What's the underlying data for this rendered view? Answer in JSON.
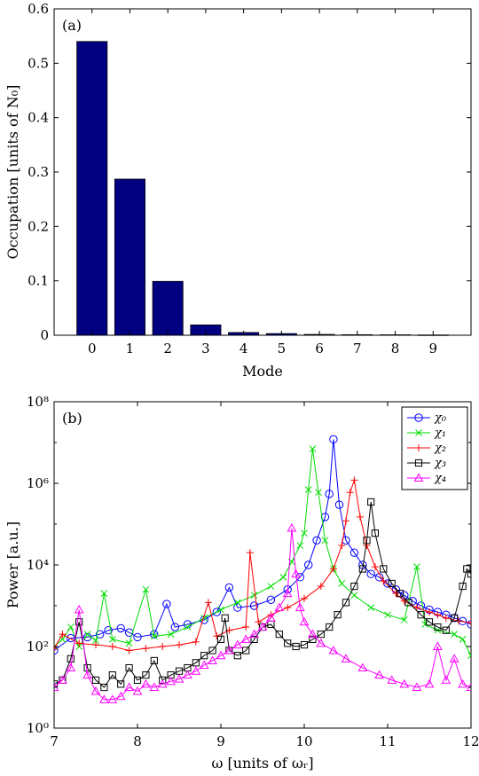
{
  "chart_data": [
    {
      "type": "bar",
      "panel_label": "(a)",
      "title": "",
      "xlabel": "Mode",
      "ylabel": "Occupation [units of N₀]",
      "categories": [
        "0",
        "1",
        "2",
        "3",
        "4",
        "5",
        "6",
        "7",
        "8",
        "9"
      ],
      "values": [
        0.54,
        0.287,
        0.099,
        0.019,
        0.005,
        0.003,
        0.0015,
        0.001,
        0.0008,
        0.0005
      ],
      "ylim": [
        0,
        0.6
      ],
      "yticks": [
        "0",
        "0.1",
        "0.2",
        "0.3",
        "0.4",
        "0.5",
        "0.6"
      ],
      "bar_color": "#000080",
      "grid": false
    },
    {
      "type": "line",
      "panel_label": "(b)",
      "title": "",
      "xlabel": "ω [units of ωᵣ]",
      "ylabel": "Power [a.u.]",
      "xlim": [
        7,
        12
      ],
      "ylim": [
        1,
        100000000
      ],
      "yscale": "log",
      "xticks": [
        "7",
        "8",
        "9",
        "10",
        "11",
        "12"
      ],
      "yticks": [
        "10⁰",
        "10²",
        "10⁴",
        "10⁶",
        "10⁸"
      ],
      "legend_position": "top-right",
      "grid": false,
      "series": [
        {
          "name": "χ₀",
          "color": "#0000ff",
          "marker": "circle",
          "points": [
            [
              7.0,
              80
            ],
            [
              7.2,
              160
            ],
            [
              7.4,
              170
            ],
            [
              7.55,
              200
            ],
            [
              7.65,
              250
            ],
            [
              7.8,
              280
            ],
            [
              7.9,
              220
            ],
            [
              8.0,
              170
            ],
            [
              8.2,
              200
            ],
            [
              8.35,
              1100
            ],
            [
              8.45,
              300
            ],
            [
              8.6,
              350
            ],
            [
              8.8,
              450
            ],
            [
              8.95,
              700
            ],
            [
              9.1,
              2800
            ],
            [
              9.2,
              900
            ],
            [
              9.4,
              1000
            ],
            [
              9.6,
              1400
            ],
            [
              9.8,
              2500
            ],
            [
              9.95,
              5000
            ],
            [
              10.05,
              10000
            ],
            [
              10.15,
              40000
            ],
            [
              10.25,
              150000
            ],
            [
              10.3,
              550000
            ],
            [
              10.35,
              12000000
            ],
            [
              10.42,
              300000
            ],
            [
              10.5,
              40000
            ],
            [
              10.6,
              20000
            ],
            [
              10.7,
              10000
            ],
            [
              10.8,
              6000
            ],
            [
              10.9,
              5000
            ],
            [
              11.0,
              3500
            ],
            [
              11.1,
              2500
            ],
            [
              11.2,
              1800
            ],
            [
              11.3,
              1300
            ],
            [
              11.4,
              1000
            ],
            [
              11.5,
              800
            ],
            [
              11.6,
              700
            ],
            [
              11.7,
              600
            ],
            [
              11.8,
              500
            ],
            [
              11.9,
              420
            ],
            [
              12.0,
              350
            ]
          ]
        },
        {
          "name": "χ₁",
          "color": "#00dd00",
          "marker": "x",
          "points": [
            [
              7.0,
              100
            ],
            [
              7.1,
              150
            ],
            [
              7.2,
              300
            ],
            [
              7.3,
              100
            ],
            [
              7.4,
              200
            ],
            [
              7.5,
              140
            ],
            [
              7.6,
              2000
            ],
            [
              7.7,
              150
            ],
            [
              7.9,
              120
            ],
            [
              8.1,
              2500
            ],
            [
              8.2,
              180
            ],
            [
              8.4,
              200
            ],
            [
              8.6,
              300
            ],
            [
              8.8,
              500
            ],
            [
              9.0,
              800
            ],
            [
              9.2,
              1200
            ],
            [
              9.4,
              1800
            ],
            [
              9.6,
              3000
            ],
            [
              9.75,
              5000
            ],
            [
              9.85,
              12000
            ],
            [
              9.95,
              30000
            ],
            [
              10.0,
              60000
            ],
            [
              10.05,
              700000
            ],
            [
              10.1,
              7000000
            ],
            [
              10.17,
              600000
            ],
            [
              10.25,
              40000
            ],
            [
              10.35,
              8000
            ],
            [
              10.45,
              3500
            ],
            [
              10.6,
              1800
            ],
            [
              10.8,
              900
            ],
            [
              11.0,
              600
            ],
            [
              11.2,
              450
            ],
            [
              11.35,
              9000
            ],
            [
              11.45,
              350
            ],
            [
              11.6,
              250
            ],
            [
              11.8,
              200
            ],
            [
              11.9,
              150
            ],
            [
              12.0,
              60
            ]
          ]
        },
        {
          "name": "χ₂",
          "color": "#ff0000",
          "marker": "plus",
          "points": [
            [
              7.0,
              90
            ],
            [
              7.1,
              200
            ],
            [
              7.3,
              120
            ],
            [
              7.5,
              110
            ],
            [
              7.7,
              100
            ],
            [
              7.9,
              80
            ],
            [
              8.1,
              90
            ],
            [
              8.3,
              100
            ],
            [
              8.5,
              110
            ],
            [
              8.7,
              130
            ],
            [
              8.85,
              1200
            ],
            [
              8.95,
              180
            ],
            [
              9.1,
              250
            ],
            [
              9.3,
              300
            ],
            [
              9.35,
              20000
            ],
            [
              9.45,
              400
            ],
            [
              9.6,
              600
            ],
            [
              9.8,
              900
            ],
            [
              10.0,
              1500
            ],
            [
              10.2,
              3000
            ],
            [
              10.35,
              8000
            ],
            [
              10.45,
              30000
            ],
            [
              10.5,
              120000
            ],
            [
              10.55,
              600000
            ],
            [
              10.6,
              1200000
            ],
            [
              10.67,
              150000
            ],
            [
              10.75,
              30000
            ],
            [
              10.85,
              9000
            ],
            [
              10.95,
              4000
            ],
            [
              11.1,
              2000
            ],
            [
              11.2,
              1300
            ],
            [
              11.35,
              900
            ],
            [
              11.5,
              700
            ],
            [
              11.6,
              600
            ],
            [
              11.7,
              500
            ],
            [
              11.85,
              420
            ],
            [
              12.0,
              380
            ]
          ]
        },
        {
          "name": "χ₃",
          "color": "#000000",
          "marker": "square",
          "points": [
            [
              7.0,
              12
            ],
            [
              7.1,
              15
            ],
            [
              7.2,
              50
            ],
            [
              7.3,
              400
            ],
            [
              7.4,
              30
            ],
            [
              7.5,
              15
            ],
            [
              7.6,
              10
            ],
            [
              7.7,
              20
            ],
            [
              7.8,
              12
            ],
            [
              7.9,
              30
            ],
            [
              8.0,
              15
            ],
            [
              8.1,
              20
            ],
            [
              8.2,
              45
            ],
            [
              8.3,
              15
            ],
            [
              8.4,
              20
            ],
            [
              8.5,
              25
            ],
            [
              8.6,
              30
            ],
            [
              8.7,
              40
            ],
            [
              8.8,
              60
            ],
            [
              8.9,
              80
            ],
            [
              9.0,
              150
            ],
            [
              9.05,
              500
            ],
            [
              9.1,
              80
            ],
            [
              9.2,
              60
            ],
            [
              9.3,
              80
            ],
            [
              9.4,
              150
            ],
            [
              9.5,
              300
            ],
            [
              9.6,
              350
            ],
            [
              9.7,
              200
            ],
            [
              9.8,
              120
            ],
            [
              9.9,
              100
            ],
            [
              10.0,
              110
            ],
            [
              10.1,
              150
            ],
            [
              10.2,
              200
            ],
            [
              10.3,
              300
            ],
            [
              10.4,
              600
            ],
            [
              10.5,
              1200
            ],
            [
              10.6,
              3000
            ],
            [
              10.7,
              8000
            ],
            [
              10.75,
              40000
            ],
            [
              10.8,
              350000
            ],
            [
              10.85,
              60000
            ],
            [
              10.95,
              8000
            ],
            [
              11.05,
              3500
            ],
            [
              11.15,
              2000
            ],
            [
              11.25,
              1200
            ],
            [
              11.4,
              600
            ],
            [
              11.5,
              400
            ],
            [
              11.6,
              300
            ],
            [
              11.7,
              250
            ],
            [
              11.8,
              500
            ],
            [
              11.9,
              3000
            ],
            [
              11.95,
              8000
            ],
            [
              12.0,
              6000
            ]
          ]
        },
        {
          "name": "χ₄",
          "color": "#ff00ff",
          "marker": "triangle",
          "points": [
            [
              7.0,
              10
            ],
            [
              7.1,
              15
            ],
            [
              7.2,
              30
            ],
            [
              7.3,
              800
            ],
            [
              7.4,
              20
            ],
            [
              7.5,
              8
            ],
            [
              7.6,
              5
            ],
            [
              7.7,
              5
            ],
            [
              7.8,
              6
            ],
            [
              7.9,
              10
            ],
            [
              8.0,
              8
            ],
            [
              8.1,
              12
            ],
            [
              8.2,
              10
            ],
            [
              8.3,
              12
            ],
            [
              8.4,
              14
            ],
            [
              8.5,
              16
            ],
            [
              8.6,
              20
            ],
            [
              8.7,
              25
            ],
            [
              8.8,
              35
            ],
            [
              8.9,
              45
            ],
            [
              9.0,
              60
            ],
            [
              9.1,
              80
            ],
            [
              9.2,
              110
            ],
            [
              9.3,
              150
            ],
            [
              9.4,
              200
            ],
            [
              9.5,
              300
            ],
            [
              9.6,
              500
            ],
            [
              9.7,
              900
            ],
            [
              9.8,
              2000
            ],
            [
              9.85,
              80000
            ],
            [
              9.9,
              6000
            ],
            [
              9.95,
              900
            ],
            [
              10.0,
              400
            ],
            [
              10.1,
              200
            ],
            [
              10.2,
              120
            ],
            [
              10.35,
              80
            ],
            [
              10.5,
              50
            ],
            [
              10.7,
              30
            ],
            [
              10.9,
              20
            ],
            [
              11.05,
              15
            ],
            [
              11.2,
              12
            ],
            [
              11.35,
              10
            ],
            [
              11.5,
              12
            ],
            [
              11.6,
              100
            ],
            [
              11.7,
              15
            ],
            [
              11.8,
              50
            ],
            [
              11.9,
              12
            ],
            [
              12.0,
              10
            ]
          ]
        }
      ]
    }
  ]
}
